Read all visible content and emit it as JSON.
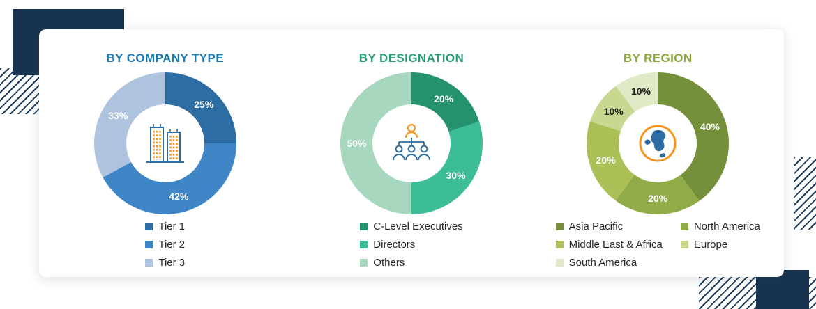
{
  "decor": {
    "navy_accent_color": "#17334f",
    "hatch_line_color": "#1d3d5c"
  },
  "chart_data": [
    {
      "type": "pie",
      "donut": true,
      "title": "BY COMPANY TYPE",
      "title_color": "#1a79b5",
      "center_icon": "buildings-icon",
      "labels": [
        "Tier 1",
        "Tier 2",
        "Tier 3"
      ],
      "values": [
        25,
        42,
        33
      ],
      "colors": [
        "#2e6da4",
        "#3f86c7",
        "#aec4de"
      ],
      "label_colors": [
        "#ffffff",
        "#ffffff",
        "#ffffff"
      ],
      "legend_columns": [
        [
          0,
          1,
          2
        ]
      ],
      "legend_position": "bottom"
    },
    {
      "type": "pie",
      "donut": true,
      "title": "BY DESIGNATION",
      "title_color": "#279b74",
      "center_icon": "org-chart-icon",
      "labels": [
        "C-Level Executives",
        "Directors",
        "Others"
      ],
      "values": [
        20,
        30,
        50
      ],
      "colors": [
        "#25926f",
        "#3cbc97",
        "#a8d7c0"
      ],
      "label_colors": [
        "#ffffff",
        "#ffffff",
        "#ffffff"
      ],
      "legend_columns": [
        [
          0,
          1,
          2
        ]
      ],
      "legend_position": "bottom"
    },
    {
      "type": "pie",
      "donut": true,
      "title": "BY REGION",
      "title_color": "#8ba63b",
      "center_icon": "globe-icon",
      "labels": [
        "Asia Pacific",
        "North America",
        "Middle East & Africa",
        "Europe",
        "South America"
      ],
      "values": [
        40,
        20,
        20,
        10,
        10
      ],
      "colors": [
        "#74903b",
        "#92ab49",
        "#abc157",
        "#c8d890",
        "#dfe9c5"
      ],
      "label_colors": [
        "#ffffff",
        "#ffffff",
        "#ffffff",
        "#222222",
        "#222222"
      ],
      "legend_columns": [
        [
          0,
          2,
          4
        ],
        [
          1,
          3
        ]
      ],
      "legend_position": "bottom"
    }
  ]
}
